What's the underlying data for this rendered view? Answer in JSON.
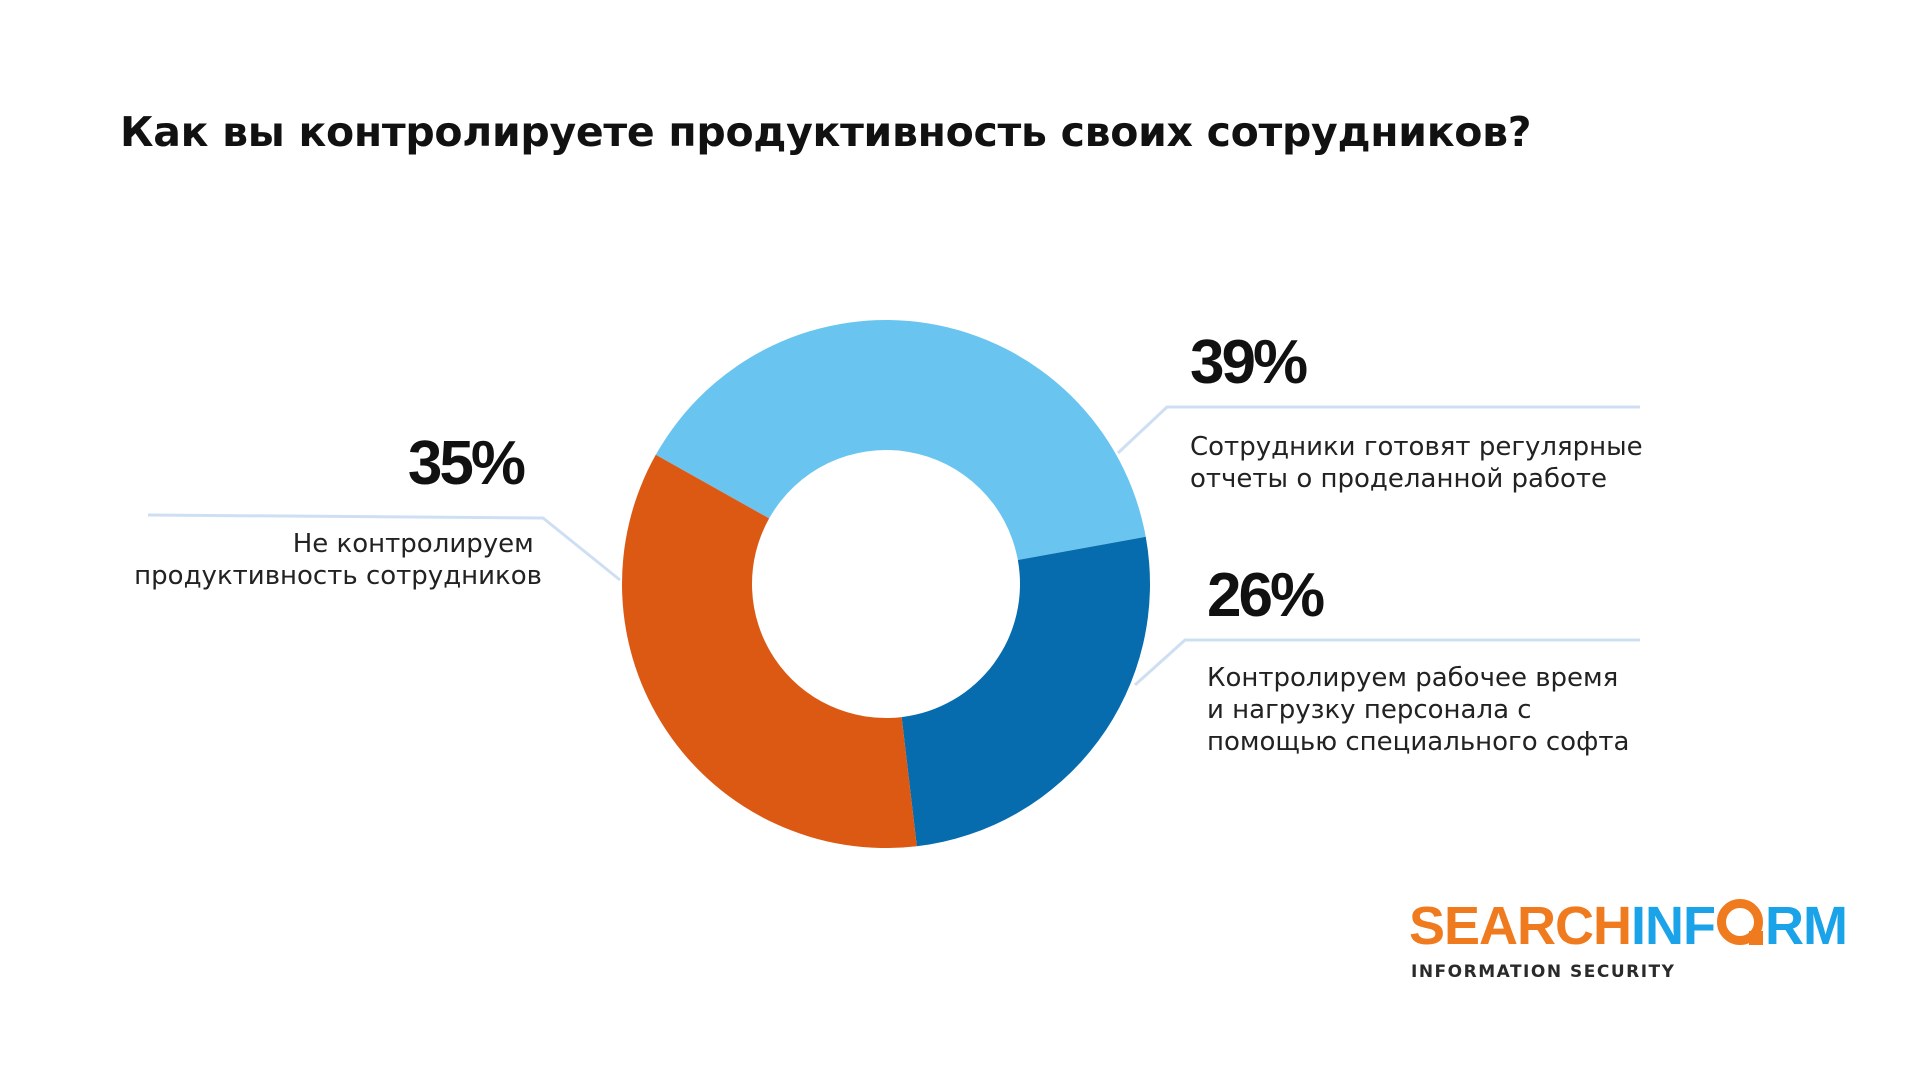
{
  "title": "Как вы контролируете продуктивность своих сотрудников?",
  "chart_data": {
    "type": "pie",
    "donut": true,
    "title": "Как вы контролируете продуктивность своих сотрудников?",
    "slices": [
      {
        "value": 39,
        "value_label": "39%",
        "label_lines": [
          "Сотрудники готовят регулярные",
          "отчеты о проделанной работе"
        ],
        "color": "#69c5f0"
      },
      {
        "value": 26,
        "value_label": "26%",
        "label_lines": [
          "Контролируем рабочее время",
          "и нагрузку персонала с",
          "помощью специального софта"
        ],
        "color": "#066cad"
      },
      {
        "value": 35,
        "value_label": "35%",
        "label_lines": [
          "Не контролируем",
          "продуктивность сотрудников"
        ],
        "color": "#dc5914"
      }
    ]
  },
  "logo": {
    "part1": "SEARCH",
    "part2a": "INF",
    "part2b": "RM",
    "tagline": "INFORMATION SECURITY",
    "color_orange": "#f07b1f",
    "color_blue": "#1aa3e8"
  }
}
